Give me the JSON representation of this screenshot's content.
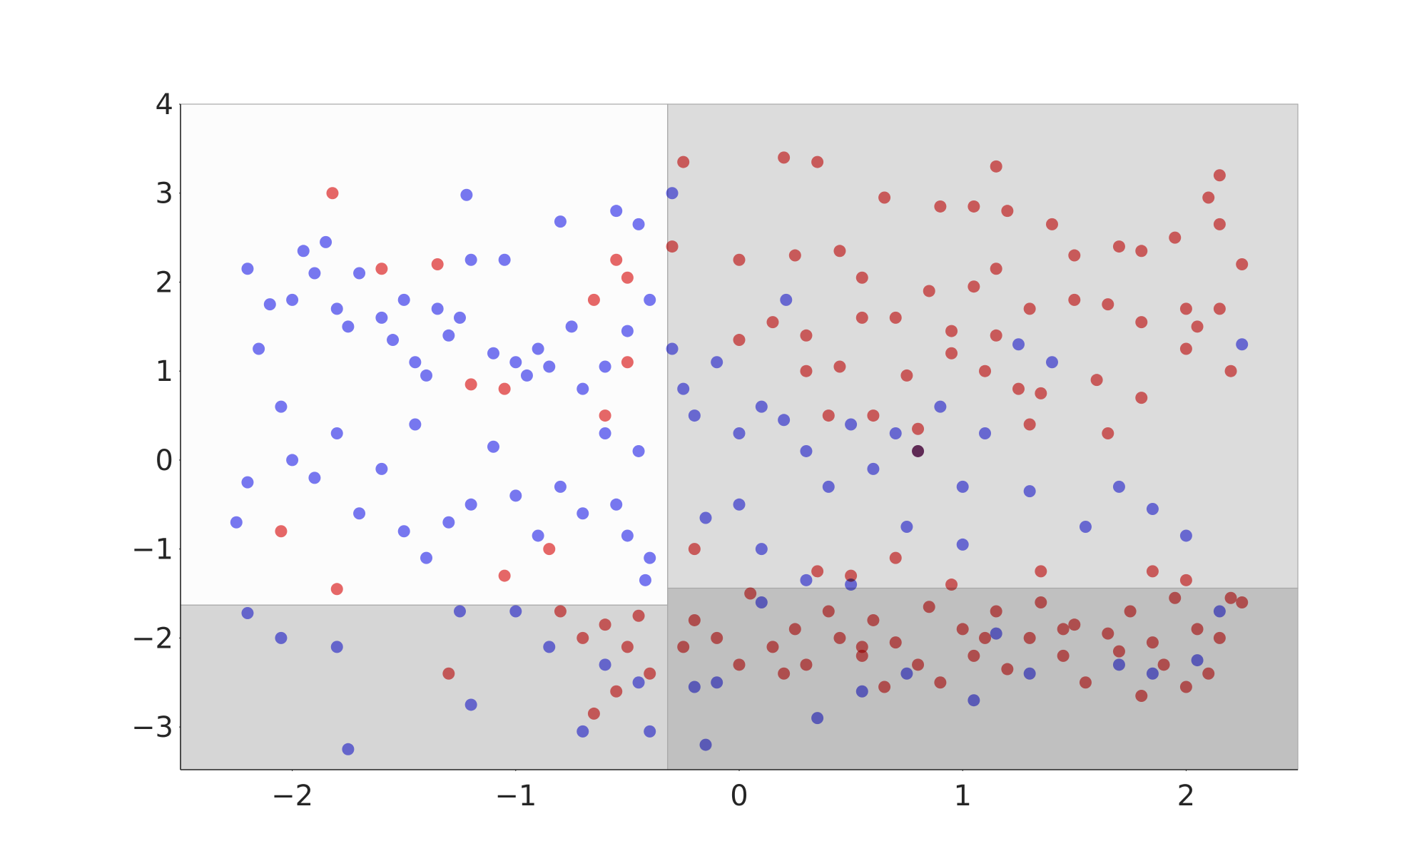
{
  "chart_data": {
    "type": "scatter",
    "xlim": [
      -2.5,
      2.5
    ],
    "ylim": [
      -3.48,
      4
    ],
    "xticks": [
      {
        "value": -2,
        "label": "−2"
      },
      {
        "value": -1,
        "label": "−1"
      },
      0,
      1,
      2
    ],
    "yticks": [
      {
        "value": -3,
        "label": "−3"
      },
      {
        "value": -2,
        "label": "−2"
      },
      {
        "value": -1,
        "label": "−1"
      },
      0,
      1,
      2,
      3,
      4
    ],
    "regions": [
      {
        "xlim": [
          -2.5,
          -0.32
        ],
        "ylim": [
          -1.63,
          4
        ],
        "color": "#fcfcfc"
      },
      {
        "xlim": [
          -2.5,
          -0.32
        ],
        "ylim": [
          -3.48,
          -1.63
        ],
        "color": "#d6d6d6"
      },
      {
        "xlim": [
          -0.32,
          2.5
        ],
        "ylim": [
          -1.44,
          4
        ],
        "color": "#dcdcdc"
      },
      {
        "xlim": [
          -0.32,
          2.5
        ],
        "ylim": [
          -3.48,
          -1.44
        ],
        "color": "#c0c0c0"
      }
    ],
    "series": [
      {
        "color": "#7878f2",
        "x": [
          -2.2,
          -2.15,
          -2.1,
          -2.0,
          -1.95,
          -1.9,
          -1.85,
          -1.8,
          -1.75,
          -1.7,
          -1.6,
          -1.55,
          -1.5,
          -1.45,
          -1.4,
          -1.35,
          -1.3,
          -1.25,
          -1.2,
          -1.22,
          -1.1,
          -1.05,
          -1.0,
          -0.95,
          -0.9,
          -0.85,
          -0.8,
          -0.75,
          -0.7,
          -0.6,
          -0.55,
          -0.5,
          -0.45,
          -0.4,
          -2.25,
          -2.2,
          -2.05,
          -2.0,
          -1.9,
          -1.8,
          -1.7,
          -1.6,
          -1.5,
          -1.45,
          -1.4,
          -1.3,
          -1.2,
          -1.1,
          -1.0,
          -0.9,
          -0.8,
          -0.7,
          -0.6,
          -0.55,
          -0.5,
          -0.45,
          -0.4,
          -0.42,
          -2.2,
          -2.05,
          -1.75,
          -1.8,
          -1.2,
          -1.25,
          -1.0,
          -0.85,
          -0.6,
          -0.7,
          -0.45,
          -0.4,
          -0.3,
          -0.3,
          -0.25,
          -0.2,
          -0.1,
          0.0,
          0.1,
          0.2,
          0.21,
          0.3,
          0.4,
          0.5,
          0.6,
          0.7,
          0.8,
          0.9,
          1.0,
          1.1,
          1.25,
          1.3,
          1.4,
          1.55,
          1.7,
          1.85,
          2.0,
          2.25,
          0.0,
          -0.15,
          0.1,
          0.3,
          0.5,
          0.75,
          1.0,
          -0.2,
          -0.1,
          0.1,
          0.35,
          0.55,
          0.75,
          1.05,
          1.15,
          1.3,
          1.7,
          1.85,
          2.05,
          2.15,
          -0.15
        ],
        "y": [
          2.15,
          1.25,
          1.75,
          1.8,
          2.35,
          2.1,
          2.45,
          1.7,
          1.5,
          2.1,
          1.6,
          1.35,
          1.8,
          1.1,
          0.95,
          1.7,
          1.4,
          1.6,
          2.25,
          2.98,
          1.2,
          2.25,
          1.1,
          0.95,
          1.25,
          1.05,
          2.68,
          1.5,
          0.8,
          1.05,
          2.8,
          1.45,
          2.65,
          1.8,
          -0.7,
          -0.25,
          0.6,
          0.0,
          -0.2,
          0.3,
          -0.6,
          -0.1,
          -0.8,
          0.4,
          -1.1,
          -0.7,
          -0.5,
          0.15,
          -0.4,
          -0.85,
          -0.3,
          -0.6,
          0.3,
          -0.5,
          -0.85,
          0.1,
          -1.1,
          -1.35,
          -1.72,
          -2.0,
          -3.25,
          -2.1,
          -2.75,
          -1.7,
          -1.7,
          -2.1,
          -2.3,
          -3.05,
          -2.5,
          -3.05,
          3.0,
          1.25,
          0.8,
          0.5,
          1.1,
          0.3,
          0.6,
          0.45,
          1.8,
          0.1,
          -0.3,
          0.4,
          -0.1,
          0.3,
          0.1,
          0.6,
          -0.3,
          0.3,
          1.3,
          -0.35,
          1.1,
          -0.75,
          -0.3,
          -0.55,
          -0.85,
          1.3,
          -0.5,
          -0.65,
          -1.0,
          -1.35,
          -1.4,
          -0.75,
          -0.95,
          -2.55,
          -2.5,
          -1.6,
          -2.9,
          -2.6,
          -2.4,
          -2.7,
          -1.95,
          -2.4,
          -2.3,
          -2.4,
          -2.25,
          -1.7,
          -3.2
        ]
      },
      {
        "color": "#e86868",
        "x": [
          0.2,
          0.35,
          1.15,
          -0.25,
          0.65,
          0.9,
          1.05,
          1.2,
          2.15,
          2.1,
          -0.3,
          0.0,
          0.25,
          0.45,
          0.55,
          0.85,
          1.05,
          1.15,
          1.4,
          1.5,
          1.7,
          1.8,
          1.95,
          2.15,
          2.25,
          0.15,
          0.3,
          0.55,
          0.7,
          0.95,
          1.15,
          1.3,
          1.5,
          1.65,
          1.8,
          2.0,
          2.05,
          2.15,
          0.0,
          0.3,
          0.45,
          0.75,
          0.95,
          1.1,
          1.25,
          1.35,
          1.6,
          1.8,
          2.0,
          2.2,
          1.3,
          1.65,
          0.4,
          0.6,
          0.8,
          0.8,
          -1.82,
          -1.35,
          -1.6,
          -0.55,
          -0.5,
          -0.65,
          -0.5,
          -0.6,
          -1.2,
          -1.05,
          -2.05,
          -1.8,
          -1.05,
          -0.85,
          -0.8,
          -0.7,
          -0.6,
          -0.5,
          -0.45,
          -0.55,
          -0.4,
          -0.65,
          -1.3,
          -0.2,
          -0.1,
          0.0,
          0.05,
          0.15,
          0.25,
          0.3,
          0.4,
          0.45,
          0.55,
          0.6,
          0.7,
          0.8,
          0.85,
          0.9,
          1.0,
          1.05,
          1.15,
          1.2,
          1.3,
          1.35,
          1.45,
          1.5,
          1.55,
          1.65,
          1.7,
          1.75,
          1.85,
          1.9,
          1.95,
          2.0,
          2.05,
          2.1,
          2.15,
          2.2,
          2.25,
          0.5,
          0.7,
          0.95,
          1.35,
          1.85,
          2.0,
          -0.2,
          0.35,
          -0.25,
          0.2,
          0.65,
          1.8,
          0.55,
          1.1,
          1.45
        ],
        "y": [
          3.4,
          3.35,
          3.3,
          3.35,
          2.95,
          2.85,
          2.85,
          2.8,
          3.2,
          2.95,
          2.4,
          2.25,
          2.3,
          2.35,
          2.05,
          1.9,
          1.95,
          2.15,
          2.65,
          2.3,
          2.4,
          2.35,
          2.5,
          2.65,
          2.2,
          1.55,
          1.4,
          1.6,
          1.6,
          1.45,
          1.4,
          1.7,
          1.8,
          1.75,
          1.55,
          1.7,
          1.5,
          1.7,
          1.35,
          1.0,
          1.05,
          0.95,
          1.2,
          1.0,
          0.8,
          0.75,
          0.9,
          0.7,
          1.25,
          1.0,
          0.4,
          0.3,
          0.5,
          0.5,
          0.35,
          0.1,
          3.0,
          2.2,
          2.15,
          2.25,
          2.05,
          1.8,
          1.1,
          0.5,
          0.85,
          0.8,
          -0.8,
          -1.45,
          -1.3,
          -1.0,
          -1.7,
          -2.0,
          -1.85,
          -2.1,
          -1.75,
          -2.6,
          -2.4,
          -2.85,
          -2.4,
          -1.8,
          -2.0,
          -2.3,
          -1.5,
          -2.1,
          -1.9,
          -2.3,
          -1.7,
          -2.0,
          -2.2,
          -1.8,
          -2.05,
          -2.3,
          -1.65,
          -2.5,
          -1.9,
          -2.2,
          -1.7,
          -2.35,
          -2.0,
          -1.6,
          -2.2,
          -1.85,
          -2.5,
          -1.95,
          -2.15,
          -1.7,
          -2.05,
          -2.3,
          -1.55,
          -2.55,
          -1.9,
          -2.4,
          -2.0,
          -1.55,
          -1.6,
          -1.3,
          -1.1,
          -1.4,
          -1.25,
          -1.25,
          -1.35,
          -1.0,
          -1.25,
          -2.1,
          -2.4,
          -2.55,
          -2.65,
          -2.1,
          -2.0,
          -1.9
        ]
      }
    ]
  }
}
